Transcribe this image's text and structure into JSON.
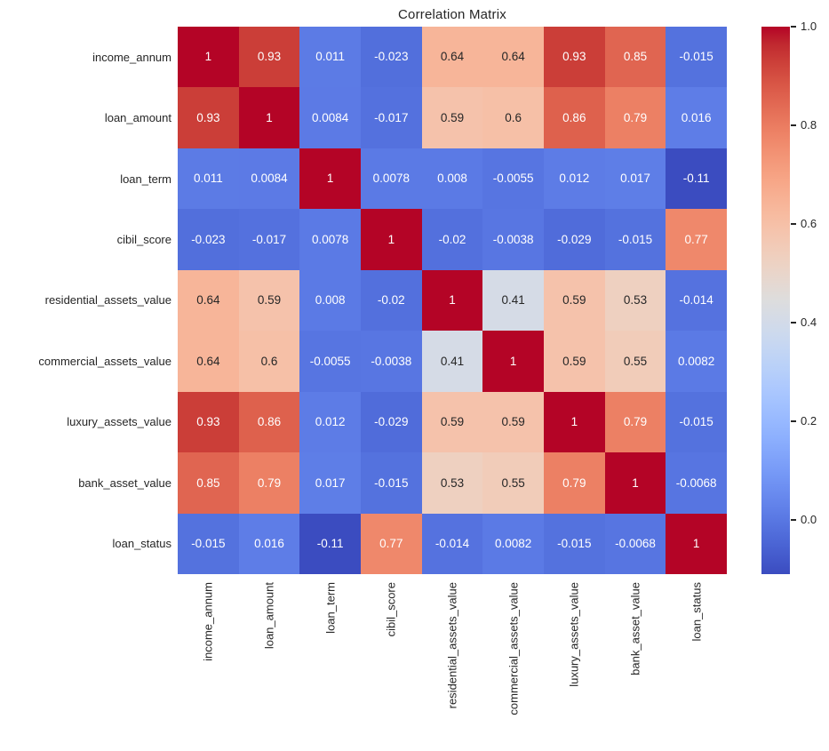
{
  "title": "Correlation Matrix",
  "chart_data": {
    "type": "heatmap",
    "title": "Correlation Matrix",
    "labels": [
      "income_annum",
      "loan_amount",
      "loan_term",
      "cibil_score",
      "residential_assets_value",
      "commercial_assets_value",
      "luxury_assets_value",
      "bank_asset_value",
      "loan_status"
    ],
    "matrix": [
      [
        "1",
        "0.93",
        "0.011",
        "-0.023",
        "0.64",
        "0.64",
        "0.93",
        "0.85",
        "-0.015"
      ],
      [
        "0.93",
        "1",
        "0.0084",
        "-0.017",
        "0.59",
        "0.6",
        "0.86",
        "0.79",
        "0.016"
      ],
      [
        "0.011",
        "0.0084",
        "1",
        "0.0078",
        "0.008",
        "-0.0055",
        "0.012",
        "0.017",
        "-0.11"
      ],
      [
        "-0.023",
        "-0.017",
        "0.0078",
        "1",
        "-0.02",
        "-0.0038",
        "-0.029",
        "-0.015",
        "0.77"
      ],
      [
        "0.64",
        "0.59",
        "0.008",
        "-0.02",
        "1",
        "0.41",
        "0.59",
        "0.53",
        "-0.014"
      ],
      [
        "0.64",
        "0.6",
        "-0.0055",
        "-0.0038",
        "0.41",
        "1",
        "0.59",
        "0.55",
        "0.0082"
      ],
      [
        "0.93",
        "0.86",
        "0.012",
        "-0.029",
        "0.59",
        "0.59",
        "1",
        "0.79",
        "-0.015"
      ],
      [
        "0.85",
        "0.79",
        "0.017",
        "-0.015",
        "0.53",
        "0.55",
        "0.79",
        "1",
        "-0.0068"
      ],
      [
        "-0.015",
        "0.016",
        "-0.11",
        "0.77",
        "-0.014",
        "0.0082",
        "-0.015",
        "-0.0068",
        "1"
      ]
    ],
    "colormap": "coolwarm",
    "vmin": -0.11,
    "vmax": 1.0,
    "grid": false,
    "legend_position": "right",
    "colorbar_ticks": [
      "1.0",
      "0.8",
      "0.6",
      "0.4",
      "0.2",
      "0.0"
    ],
    "colorbar_tick_values": [
      1.0,
      0.8,
      0.6,
      0.4,
      0.2,
      0.0
    ],
    "colormap_stops": [
      "#3b4cc0",
      "#445acc",
      "#4d68d7",
      "#5775e1",
      "#6282ea",
      "#6c8ef1",
      "#779af7",
      "#82a5fb",
      "#8db0fe",
      "#98b9ff",
      "#a3c2ff",
      "#aec9fd",
      "#b8d0f9",
      "#c2d5f4",
      "#ccd9ee",
      "#d5dbe6",
      "#dddddd",
      "#e5d8d1",
      "#ecd3c5",
      "#f1ccb9",
      "#f5c4ad",
      "#f7bba0",
      "#f7b194",
      "#f7a687",
      "#f49a7b",
      "#f18d6f",
      "#ec7f63",
      "#e57058",
      "#de604d",
      "#d55042",
      "#cb3e38",
      "#c0282f",
      "#b40426"
    ]
  },
  "colors": {
    "background": "#ffffff",
    "annotation_dark": "#262626",
    "annotation_light": "#ffffff",
    "axis_text": "#262626",
    "tick_mark": "#262626"
  }
}
